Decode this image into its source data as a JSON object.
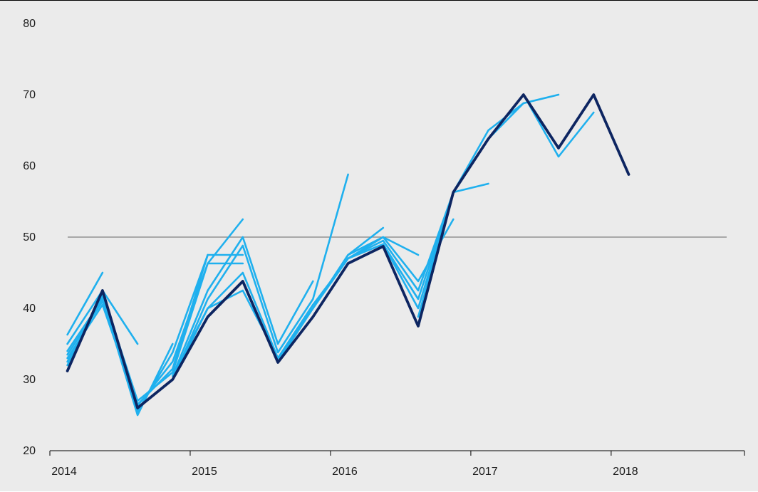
{
  "chart_data": {
    "type": "line",
    "title": "",
    "xlabel": "",
    "ylabel": "",
    "xlim": [
      2014.0,
      2018.95
    ],
    "ylim": [
      20,
      80
    ],
    "yticks": [
      20,
      30,
      40,
      50,
      60,
      70,
      80
    ],
    "xticks": [
      2014,
      2015,
      2016,
      2017,
      2018
    ],
    "reference_line": 50,
    "grid": false,
    "legend": "none",
    "colors": {
      "background": "#ebebeb",
      "actual": "#0d2561",
      "vintage": "#1fb0ee",
      "reference": "#7f7f7f",
      "axis": "#000000"
    },
    "actual": {
      "x": [
        2014.125,
        2014.375,
        2014.625,
        2014.875,
        2015.125,
        2015.375,
        2015.625,
        2015.875,
        2016.125,
        2016.375,
        2016.625,
        2016.875,
        2017.125,
        2017.375,
        2017.625,
        2017.875,
        2018.125
      ],
      "y": [
        31.2,
        42.5,
        26.0,
        30.0,
        38.8,
        43.8,
        32.4,
        38.8,
        46.3,
        48.7,
        37.5,
        56.3,
        63.8,
        70.0,
        62.5,
        70.0,
        58.8
      ]
    },
    "vintages": [
      {
        "x": [
          2014.125,
          2014.375
        ],
        "y": [
          36.3,
          45.0
        ]
      },
      {
        "x": [
          2014.125,
          2014.375,
          2014.625
        ],
        "y": [
          35.0,
          42.5,
          35.0
        ]
      },
      {
        "x": [
          2014.125,
          2014.375,
          2014.625,
          2014.875
        ],
        "y": [
          34.0,
          41.3,
          25.0,
          35.0
        ]
      },
      {
        "x": [
          2014.125,
          2014.375,
          2014.625,
          2014.875,
          2015.125
        ],
        "y": [
          33.5,
          41.0,
          25.5,
          33.8,
          47.5
        ]
      },
      {
        "x": [
          2014.125,
          2014.375,
          2014.625,
          2014.875,
          2015.125,
          2015.375
        ],
        "y": [
          33.0,
          40.5,
          26.3,
          32.5,
          46.3,
          52.5
        ]
      },
      {
        "x": [
          2014.125,
          2014.375,
          2014.625,
          2014.875,
          2015.125,
          2015.375
        ],
        "y": [
          32.5,
          41.5,
          26.5,
          31.5,
          47.5,
          47.5
        ]
      },
      {
        "x": [
          2014.125,
          2014.375,
          2014.625,
          2014.875,
          2015.125,
          2015.375
        ],
        "y": [
          32.0,
          42.0,
          27.0,
          31.0,
          46.3,
          46.3
        ]
      },
      {
        "x": [
          2014.875,
          2015.125,
          2015.375,
          2015.625,
          2015.875
        ],
        "y": [
          30.5,
          42.5,
          50.0,
          35.0,
          43.8
        ]
      },
      {
        "x": [
          2014.875,
          2015.125,
          2015.375,
          2015.625,
          2015.875,
          2016.125
        ],
        "y": [
          30.0,
          41.3,
          48.8,
          33.8,
          41.3,
          58.8
        ]
      },
      {
        "x": [
          2014.875,
          2015.125,
          2015.375,
          2015.625,
          2015.875,
          2016.125,
          2016.375
        ],
        "y": [
          30.5,
          40.0,
          45.0,
          33.0,
          40.0,
          47.5,
          51.3
        ]
      },
      {
        "x": [
          2014.875,
          2015.125,
          2015.375,
          2015.625,
          2015.875,
          2016.125,
          2016.375,
          2016.625
        ],
        "y": [
          30.0,
          40.0,
          42.5,
          33.0,
          40.0,
          47.5,
          50.0,
          47.5
        ]
      },
      {
        "x": [
          2015.625,
          2015.875,
          2016.125,
          2016.375,
          2016.625,
          2016.875
        ],
        "y": [
          33.0,
          40.5,
          47.0,
          50.0,
          43.8,
          52.5
        ]
      },
      {
        "x": [
          2015.625,
          2015.875,
          2016.125,
          2016.375,
          2016.625,
          2016.875,
          2017.125
        ],
        "y": [
          32.5,
          40.0,
          47.0,
          49.5,
          42.5,
          56.3,
          57.5
        ]
      },
      {
        "x": [
          2016.125,
          2016.375,
          2016.625,
          2016.875,
          2017.125,
          2017.375
        ],
        "y": [
          47.0,
          49.0,
          41.3,
          56.3,
          65.0,
          68.8
        ]
      },
      {
        "x": [
          2016.375,
          2016.625,
          2016.875,
          2017.125,
          2017.375,
          2017.625
        ],
        "y": [
          49.0,
          40.0,
          56.3,
          63.8,
          68.8,
          70.0
        ]
      },
      {
        "x": [
          2016.625,
          2016.875,
          2017.125,
          2017.375,
          2017.625,
          2017.875
        ],
        "y": [
          38.8,
          56.3,
          63.8,
          70.0,
          61.3,
          67.5
        ]
      }
    ]
  }
}
